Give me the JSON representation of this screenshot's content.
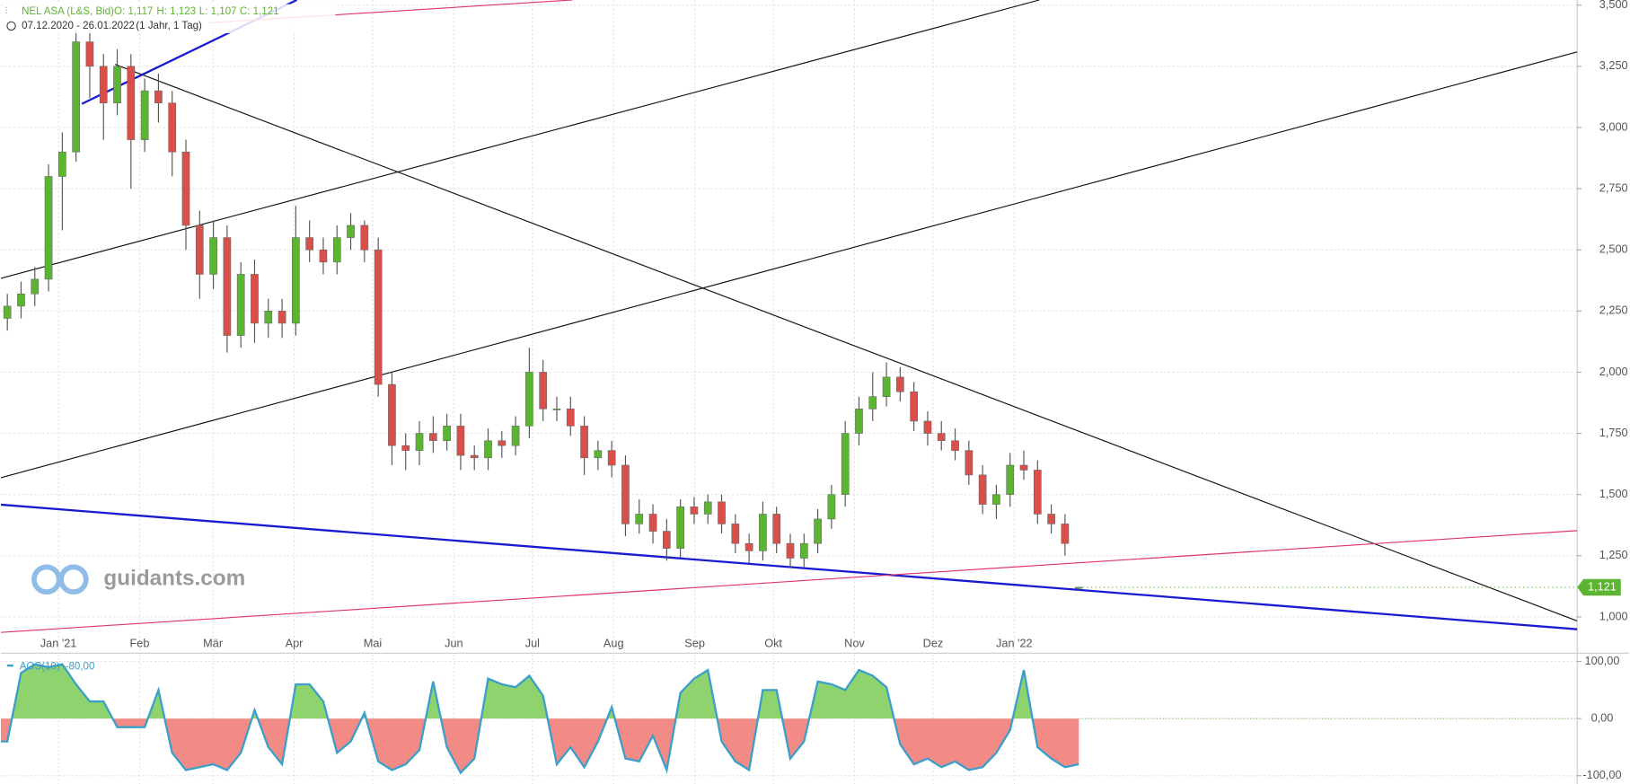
{
  "chart_data": {
    "type": "candlestick",
    "instrument": "NEL ASA (L&S, Bid)",
    "ohlc_labels": [
      "O: 1,117",
      "H: 1,123",
      "L: 1,107",
      "C: 1,121"
    ],
    "period": "07.12.2020 - 26.01.2022",
    "period_note": "(1 Jahr, 1 Tag)",
    "logo": "guidants.com",
    "up_color": "#5cb531",
    "down_color": "#d94f4a",
    "grid": true,
    "xlim": [
      "2020-12-10",
      "2022-08-04"
    ],
    "xticks": [
      {
        "value": "2021-01-01",
        "label": "Jan '21"
      },
      {
        "value": "2021-02-01",
        "label": "Feb"
      },
      {
        "value": "2021-03-01",
        "label": "Mär"
      },
      {
        "value": "2021-04-01",
        "label": "Apr"
      },
      {
        "value": "2021-05-01",
        "label": "Mai"
      },
      {
        "value": "2021-06-01",
        "label": "Jun"
      },
      {
        "value": "2021-07-01",
        "label": "Jul"
      },
      {
        "value": "2021-08-01",
        "label": "Aug"
      },
      {
        "value": "2021-09-01",
        "label": "Sep"
      },
      {
        "value": "2021-10-01",
        "label": "Okt"
      },
      {
        "value": "2021-11-01",
        "label": "Nov"
      },
      {
        "value": "2021-12-01",
        "label": "Dez"
      },
      {
        "value": "2022-01-01",
        "label": "Jan '22"
      }
    ],
    "ylim": [
      0.856,
      3.521
    ],
    "yticks": [
      {
        "value": 1,
        "label": "1,000"
      },
      {
        "value": 1.25,
        "label": "1,250"
      },
      {
        "value": 1.5,
        "label": "1,500"
      },
      {
        "value": 1.75,
        "label": "1,750"
      },
      {
        "value": 2,
        "label": "2,000"
      },
      {
        "value": 2.25,
        "label": "2,250"
      },
      {
        "value": 2.5,
        "label": "2,500"
      },
      {
        "value": 2.75,
        "label": "2,750"
      },
      {
        "value": 3,
        "label": "3,000"
      },
      {
        "value": 3.25,
        "label": "3,250"
      },
      {
        "value": 3.5,
        "label": "3,500"
      }
    ],
    "last_price": {
      "value": 1.121,
      "label": "1,121"
    },
    "open": [
      2.2,
      2.22,
      2.27,
      2.32,
      2.38,
      2.8,
      2.9,
      3.35,
      3.25,
      3.1,
      3.25,
      2.95,
      3.15,
      3.1,
      2.9,
      2.6,
      2.4,
      2.55,
      2.15,
      2.4,
      2.2,
      2.25,
      2.2,
      2.55,
      2.5,
      2.45,
      2.55,
      2.6,
      2.5,
      1.95,
      1.7,
      1.68,
      1.75,
      1.72,
      1.78,
      1.66,
      1.65,
      1.72,
      1.7,
      1.78,
      2.0,
      1.85,
      1.85,
      1.78,
      1.65,
      1.68,
      1.62,
      1.38,
      1.42,
      1.35,
      1.28,
      1.45,
      1.42,
      1.47,
      1.38,
      1.3,
      1.27,
      1.42,
      1.3,
      1.24,
      1.3,
      1.4,
      1.5,
      1.75,
      1.85,
      1.9,
      1.98,
      1.92,
      1.8,
      1.75,
      1.72,
      1.68,
      1.58,
      1.46,
      1.5,
      1.62,
      1.6,
      1.42,
      1.38,
      1.117
    ],
    "high": [
      2.27,
      2.32,
      2.37,
      2.43,
      2.85,
      2.98,
      3.4,
      3.4,
      3.3,
      3.32,
      3.3,
      3.2,
      3.22,
      3.15,
      2.95,
      2.66,
      2.62,
      2.6,
      2.45,
      2.46,
      2.3,
      2.3,
      2.68,
      2.62,
      2.55,
      2.6,
      2.65,
      2.62,
      2.55,
      2.0,
      1.75,
      1.8,
      1.82,
      1.83,
      1.83,
      1.7,
      1.77,
      1.76,
      1.82,
      2.1,
      2.05,
      1.9,
      1.9,
      1.82,
      1.72,
      1.72,
      1.66,
      1.48,
      1.46,
      1.4,
      1.48,
      1.49,
      1.5,
      1.5,
      1.42,
      1.34,
      1.47,
      1.45,
      1.34,
      1.34,
      1.44,
      1.54,
      1.8,
      1.9,
      2.0,
      2.04,
      2.02,
      1.96,
      1.84,
      1.8,
      1.77,
      1.72,
      1.62,
      1.54,
      1.67,
      1.68,
      1.64,
      1.46,
      1.42,
      1.123
    ],
    "low": [
      2.15,
      2.17,
      2.22,
      2.27,
      2.33,
      2.58,
      2.86,
      3.12,
      2.95,
      3.05,
      2.75,
      2.9,
      3.02,
      2.8,
      2.5,
      2.3,
      2.34,
      2.08,
      2.1,
      2.12,
      2.14,
      2.14,
      2.15,
      2.45,
      2.4,
      2.4,
      2.5,
      2.45,
      1.9,
      1.62,
      1.6,
      1.62,
      1.67,
      1.68,
      1.6,
      1.6,
      1.6,
      1.65,
      1.66,
      1.73,
      1.8,
      1.8,
      1.74,
      1.58,
      1.6,
      1.57,
      1.33,
      1.34,
      1.3,
      1.23,
      1.24,
      1.38,
      1.38,
      1.34,
      1.26,
      1.22,
      1.23,
      1.26,
      1.2,
      1.2,
      1.26,
      1.36,
      1.45,
      1.7,
      1.8,
      1.86,
      1.88,
      1.76,
      1.7,
      1.68,
      1.64,
      1.54,
      1.42,
      1.4,
      1.45,
      1.56,
      1.38,
      1.34,
      1.25,
      1.107
    ],
    "close": [
      2.22,
      2.27,
      2.32,
      2.38,
      2.8,
      2.9,
      3.35,
      3.25,
      3.1,
      3.25,
      2.95,
      3.15,
      3.1,
      2.9,
      2.6,
      2.4,
      2.55,
      2.15,
      2.4,
      2.2,
      2.25,
      2.2,
      2.55,
      2.5,
      2.45,
      2.55,
      2.6,
      2.5,
      1.95,
      1.7,
      1.68,
      1.75,
      1.72,
      1.78,
      1.66,
      1.65,
      1.72,
      1.7,
      1.78,
      2.0,
      1.85,
      1.85,
      1.78,
      1.65,
      1.68,
      1.62,
      1.38,
      1.42,
      1.35,
      1.28,
      1.45,
      1.42,
      1.47,
      1.38,
      1.3,
      1.27,
      1.42,
      1.3,
      1.24,
      1.3,
      1.4,
      1.5,
      1.75,
      1.85,
      1.9,
      1.98,
      1.92,
      1.8,
      1.75,
      1.72,
      1.68,
      1.58,
      1.46,
      1.5,
      1.62,
      1.6,
      1.42,
      1.38,
      1.3,
      1.121
    ],
    "indicator": {
      "name": "AOS(10)",
      "value_label": "-80,00",
      "line_color": "#3a9fc9",
      "positive_color": "#8fd36e",
      "negative_color": "#f28b86",
      "ylim": [
        -114.5,
        112.7
      ],
      "yticks": [
        {
          "value": 100,
          "label": "100,00"
        },
        {
          "value": 0,
          "label": "0,00"
        },
        {
          "value": -100,
          "label": "-100,00"
        }
      ],
      "values": [
        -40,
        -40,
        80,
        95,
        90,
        95,
        60,
        30,
        30,
        -15,
        -15,
        -15,
        50,
        -60,
        -90,
        -85,
        -80,
        -90,
        -60,
        15,
        -50,
        -80,
        60,
        60,
        30,
        -60,
        -40,
        10,
        -75,
        -90,
        -80,
        -55,
        65,
        -50,
        -95,
        -70,
        70,
        60,
        55,
        75,
        40,
        -80,
        -50,
        -85,
        -40,
        20,
        -70,
        -75,
        -30,
        -90,
        45,
        70,
        85,
        -40,
        -75,
        -90,
        50,
        50,
        -70,
        -40,
        65,
        60,
        50,
        85,
        75,
        55,
        -45,
        -80,
        -70,
        -85,
        -75,
        -90,
        -85,
        -60,
        -20,
        85,
        -50,
        -70,
        -85,
        -80
      ]
    }
  }
}
